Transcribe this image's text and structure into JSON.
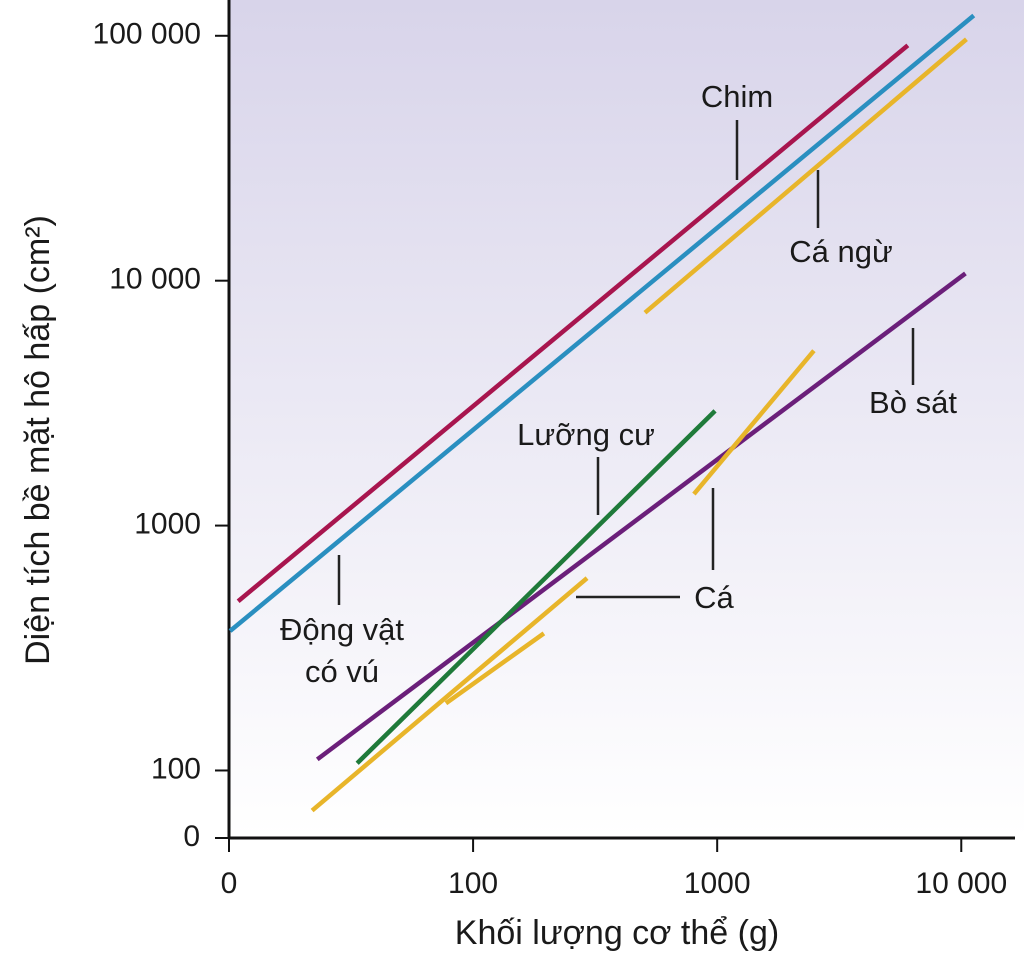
{
  "chart_data": {
    "type": "line",
    "x_label": "Khối lượng cơ thể (g)",
    "y_label": "Diện tích bề mặt hô hấp (cm²)",
    "log_x": true,
    "log_y": true,
    "xlim": [
      10,
      16600
    ],
    "ylim": [
      53,
      140000
    ],
    "xticks": [
      100,
      1000,
      {
        "value": 10000,
        "label": "10 000"
      }
    ],
    "yticks": [
      100,
      1000,
      {
        "value": 10000,
        "label": "10 000"
      },
      {
        "value": 100000,
        "label": "100 000"
      }
    ],
    "x_origin_label": "0",
    "y_origin_label": "0",
    "series": [
      {
        "name": "Chim",
        "color": "#a8154e",
        "x": [
          10.9,
          6040
        ],
        "values": [
          491,
          91400
        ]
      },
      {
        "name": "Động vật có vú",
        "color": "#2a8fc0",
        "x": [
          10.1,
          11250
        ],
        "values": [
          371,
          121000
        ]
      },
      {
        "name": "Cá ngừ",
        "color": "#e8b52a",
        "x": [
          506,
          10500
        ],
        "values": [
          7400,
          96800
        ]
      },
      {
        "name": "Bò sát",
        "color": "#6b1f7a",
        "x": [
          23,
          10400
        ],
        "values": [
          111,
          10700
        ]
      },
      {
        "name": "Lưỡng cư",
        "color": "#1f7a3a",
        "x": [
          33.5,
          980
        ],
        "values": [
          107,
          2940
        ]
      },
      {
        "name": "Cá",
        "color": "#e8b52a",
        "x": [
          21.9,
          293,
          null,
          77.4,
          195,
          null,
          803,
          2490
        ],
        "values": [
          68.6,
          610,
          null,
          188,
          363,
          null,
          1345,
          5180
        ]
      }
    ]
  }
}
